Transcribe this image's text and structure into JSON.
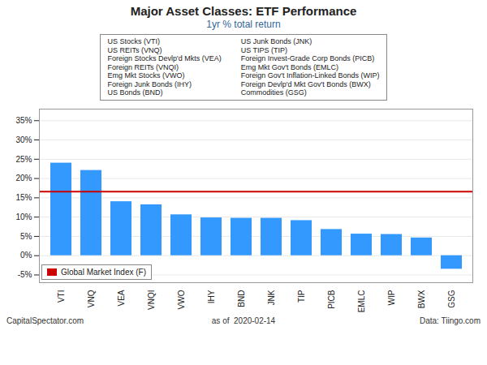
{
  "chart_data": {
    "type": "bar",
    "title": "Major Asset Classes: ETF Performance",
    "subtitle": "1yr % total return",
    "categories": [
      "VTI",
      "VNQ",
      "VEA",
      "VNQI",
      "VWO",
      "IHY",
      "BND",
      "JNK",
      "TIP",
      "PICB",
      "EMLC",
      "WIP",
      "BWX",
      "GSG"
    ],
    "values": [
      24.0,
      22.1,
      14.0,
      13.2,
      10.6,
      9.8,
      9.7,
      9.7,
      9.1,
      6.8,
      5.6,
      5.5,
      4.6,
      -3.5
    ],
    "color": "#3399FF",
    "ylim": [
      -7,
      38
    ],
    "yticks": [
      {
        "value": -5,
        "label": "-5%"
      },
      {
        "value": 0,
        "label": "0%"
      },
      {
        "value": 5,
        "label": "5%"
      },
      {
        "value": 10,
        "label": "10%"
      },
      {
        "value": 15,
        "label": "15%"
      },
      {
        "value": 20,
        "label": "20%"
      },
      {
        "value": 25,
        "label": "25%"
      },
      {
        "value": 30,
        "label": "30%"
      },
      {
        "value": 35,
        "label": "35%"
      }
    ],
    "grid": true,
    "reference_line": {
      "value": 16.6,
      "color": "#CC0000",
      "label": "Global Market Index (F)"
    },
    "legend": "lower left",
    "annotations": {
      "left": [
        "US Stocks (VTI)",
        "US REITs (VNQ)",
        "Foreign Stocks Devlp'd Mkts (VEA)",
        "Foreign REITs (VNQI)",
        "Emg Mkt Stocks (VWO)",
        "Foreign Junk Bonds (IHY)",
        "US Bonds (BND)"
      ],
      "right": [
        "US Junk Bonds (JNK)",
        "US TIPS (TIP)",
        "Foreign Invest-Grade Corp Bonds (PICB)",
        "Emg Mkt Gov't Bonds (EMLC)",
        "Foreign Gov't Inflation-Linked Bonds (WIP)",
        "Foreign Devlp'd Mkt Gov't Bonds (BWX)",
        "Commodities (GSG)"
      ]
    },
    "footer": [
      "CapitalSpectator.com",
      "as of  2020-02-14",
      "Data: Tiingo.com"
    ]
  }
}
